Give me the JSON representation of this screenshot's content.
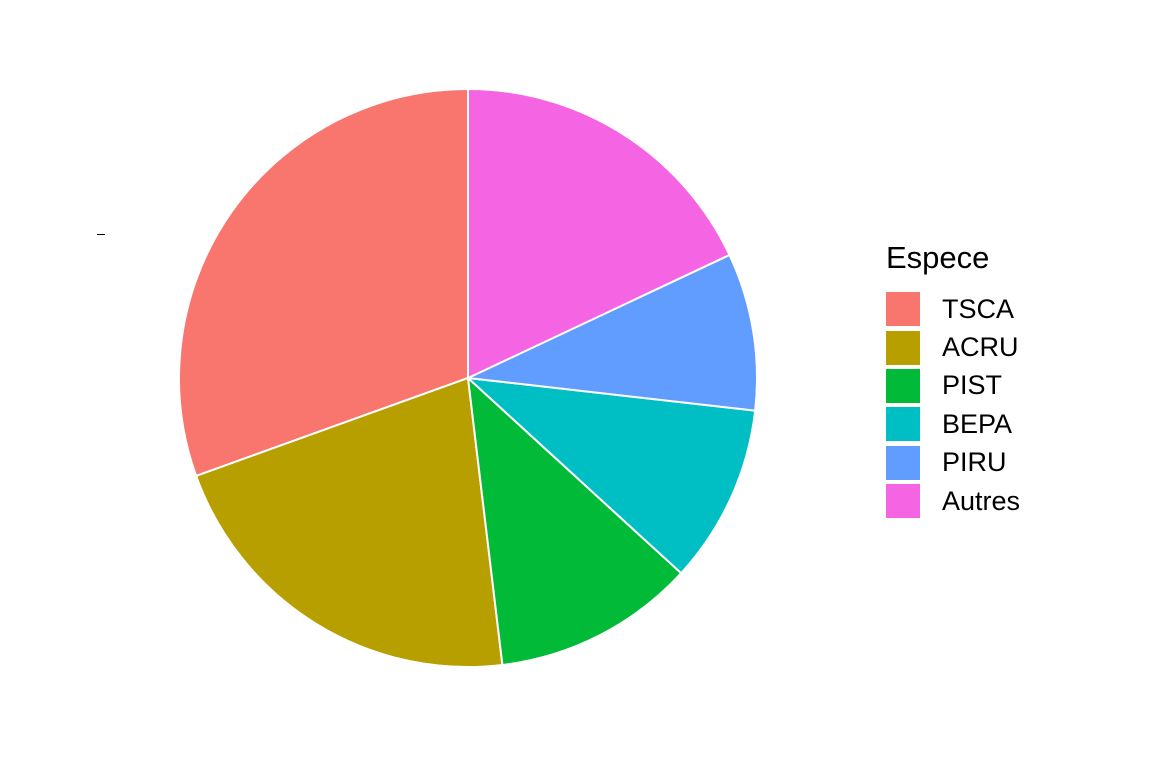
{
  "chart_data": {
    "type": "pie",
    "title": "",
    "legend": {
      "title": "Espece",
      "placement": "right"
    },
    "categories": [
      "TSCA",
      "ACRU",
      "PIST",
      "BEPA",
      "PIRU",
      "Autres"
    ],
    "values": [
      30.5,
      21.4,
      11.3,
      10.0,
      8.8,
      18.0
    ],
    "colors": [
      "#F8766D",
      "#B79F00",
      "#00BA38",
      "#00BFC4",
      "#619CFF",
      "#F564E3"
    ],
    "slice_border_color": "#FFFFFF",
    "direction": "counterclockwise",
    "start": "top"
  }
}
